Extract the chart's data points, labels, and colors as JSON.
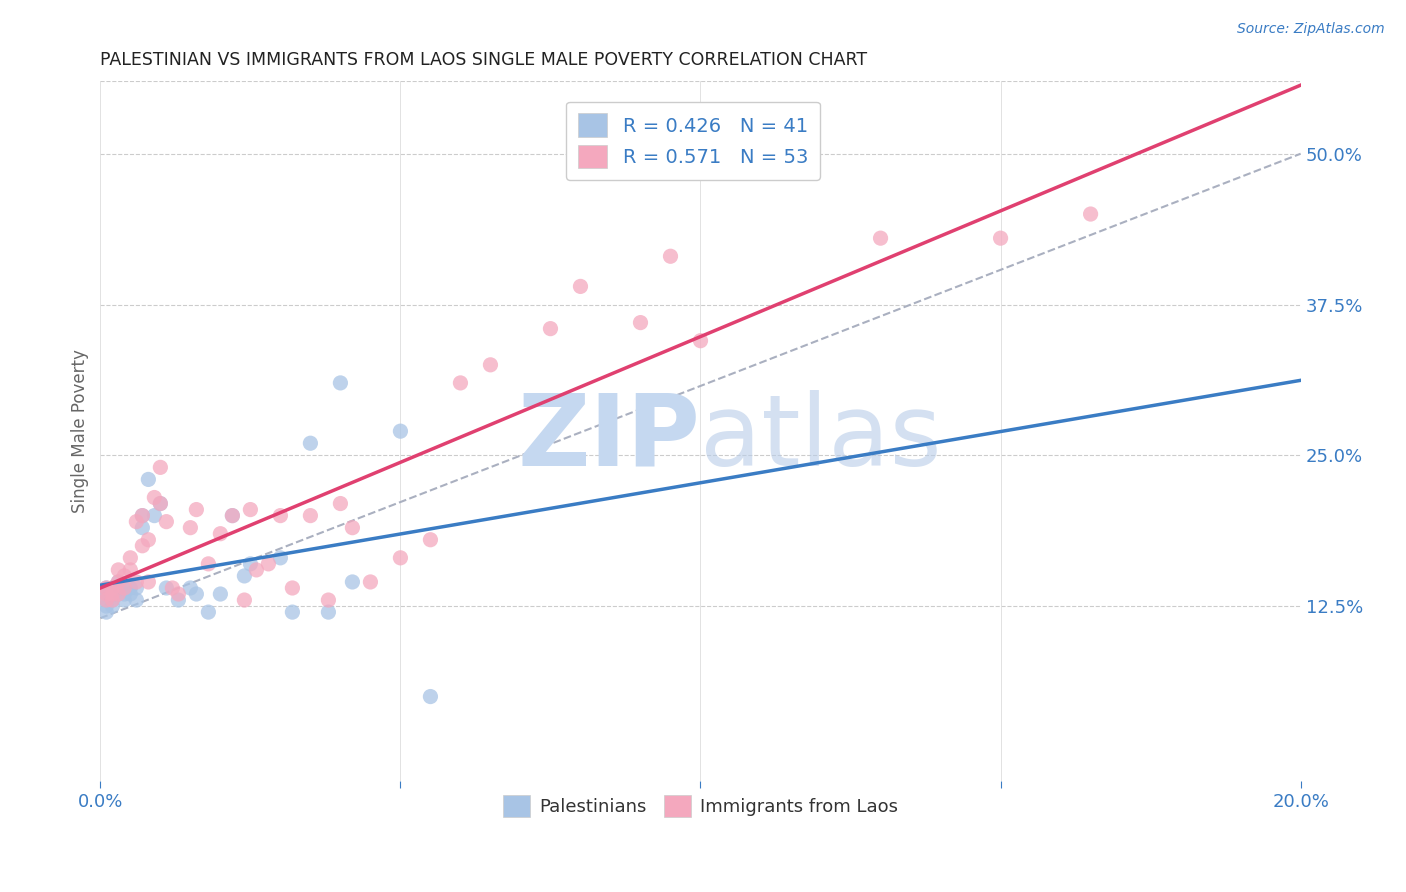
{
  "title": "PALESTINIAN VS IMMIGRANTS FROM LAOS SINGLE MALE POVERTY CORRELATION CHART",
  "source": "Source: ZipAtlas.com",
  "ylabel": "Single Male Poverty",
  "xlim": [
    0.0,
    0.2
  ],
  "ylim": [
    -0.02,
    0.56
  ],
  "xticks": [
    0.0,
    0.05,
    0.1,
    0.15,
    0.2
  ],
  "xtick_labels": [
    "0.0%",
    "",
    "",
    "",
    "20.0%"
  ],
  "ytick_labels_right": [
    "12.5%",
    "25.0%",
    "37.5%",
    "50.0%"
  ],
  "ytick_vals_right": [
    0.125,
    0.25,
    0.375,
    0.5
  ],
  "palestinian_color": "#a8c4e5",
  "laos_color": "#f4a8be",
  "palestinian_line_color": "#3a7cc4",
  "laos_line_color": "#e04070",
  "dashed_line_color": "#aab0c0",
  "legend_R_blue": "#3a7cc4",
  "watermark_zip_color": "#c5d8f0",
  "watermark_atlas_color": "#b8cce8",
  "R_palestinian": 0.426,
  "N_palestinian": 41,
  "R_laos": 0.571,
  "N_laos": 53,
  "palestinian_x": [
    0.001,
    0.001,
    0.001,
    0.001,
    0.001,
    0.002,
    0.002,
    0.002,
    0.002,
    0.003,
    0.003,
    0.003,
    0.004,
    0.004,
    0.004,
    0.005,
    0.005,
    0.006,
    0.006,
    0.007,
    0.007,
    0.008,
    0.009,
    0.01,
    0.011,
    0.013,
    0.015,
    0.016,
    0.018,
    0.02,
    0.022,
    0.024,
    0.025,
    0.03,
    0.032,
    0.035,
    0.038,
    0.04,
    0.042,
    0.05,
    0.055
  ],
  "palestinian_y": [
    0.14,
    0.135,
    0.13,
    0.125,
    0.12,
    0.135,
    0.14,
    0.13,
    0.125,
    0.135,
    0.14,
    0.145,
    0.14,
    0.135,
    0.13,
    0.14,
    0.135,
    0.14,
    0.13,
    0.2,
    0.19,
    0.23,
    0.2,
    0.21,
    0.14,
    0.13,
    0.14,
    0.135,
    0.12,
    0.135,
    0.2,
    0.15,
    0.16,
    0.165,
    0.12,
    0.26,
    0.12,
    0.31,
    0.145,
    0.27,
    0.05
  ],
  "laos_x": [
    0.001,
    0.001,
    0.001,
    0.002,
    0.002,
    0.002,
    0.003,
    0.003,
    0.003,
    0.004,
    0.004,
    0.005,
    0.005,
    0.006,
    0.006,
    0.007,
    0.007,
    0.008,
    0.008,
    0.009,
    0.01,
    0.01,
    0.011,
    0.012,
    0.013,
    0.015,
    0.016,
    0.018,
    0.02,
    0.022,
    0.024,
    0.025,
    0.026,
    0.028,
    0.03,
    0.032,
    0.035,
    0.038,
    0.04,
    0.042,
    0.045,
    0.05,
    0.055,
    0.06,
    0.065,
    0.075,
    0.08,
    0.09,
    0.095,
    0.1,
    0.13,
    0.15,
    0.165
  ],
  "laos_y": [
    0.135,
    0.14,
    0.13,
    0.14,
    0.13,
    0.135,
    0.135,
    0.145,
    0.155,
    0.14,
    0.15,
    0.155,
    0.165,
    0.145,
    0.195,
    0.2,
    0.175,
    0.18,
    0.145,
    0.215,
    0.21,
    0.24,
    0.195,
    0.14,
    0.135,
    0.19,
    0.205,
    0.16,
    0.185,
    0.2,
    0.13,
    0.205,
    0.155,
    0.16,
    0.2,
    0.14,
    0.2,
    0.13,
    0.21,
    0.19,
    0.145,
    0.165,
    0.18,
    0.31,
    0.325,
    0.355,
    0.39,
    0.36,
    0.415,
    0.345,
    0.43,
    0.43,
    0.45
  ],
  "reg_pal_slope": 2.0,
  "reg_pal_intercept": 0.125,
  "reg_laos_slope": 2.3,
  "reg_laos_intercept": 0.115,
  "reg_dashed_slope": 2.8,
  "reg_dashed_intercept": 0.105
}
